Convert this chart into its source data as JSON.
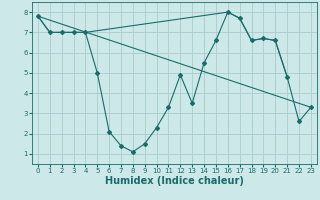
{
  "xlabel": "Humidex (Indice chaleur)",
  "background_color": "#cce8e8",
  "grid_color": "#aacccc",
  "line_color": "#1a6b6b",
  "line1_x": [
    0,
    1,
    2,
    3,
    4,
    5,
    6,
    7,
    8,
    9,
    10,
    11,
    12,
    13,
    14,
    15,
    16,
    17,
    18,
    19,
    20,
    21,
    22,
    23
  ],
  "line1_y": [
    7.8,
    7.0,
    7.0,
    7.0,
    7.0,
    5.0,
    2.1,
    1.4,
    1.1,
    1.5,
    2.3,
    3.3,
    4.9,
    3.5,
    5.5,
    6.6,
    8.0,
    7.7,
    6.6,
    6.7,
    6.6,
    4.8,
    2.6,
    3.3
  ],
  "line2_x": [
    0,
    1,
    2,
    3,
    4,
    16,
    17,
    18,
    19,
    20,
    21
  ],
  "line2_y": [
    7.8,
    7.0,
    7.0,
    7.0,
    7.0,
    8.0,
    7.7,
    6.6,
    6.7,
    6.6,
    4.8
  ],
  "line3_x": [
    0,
    23
  ],
  "line3_y": [
    7.8,
    3.3
  ],
  "xlim": [
    -0.5,
    23.5
  ],
  "ylim": [
    0.5,
    8.5
  ],
  "xticks": [
    0,
    1,
    2,
    3,
    4,
    5,
    6,
    7,
    8,
    9,
    10,
    11,
    12,
    13,
    14,
    15,
    16,
    17,
    18,
    19,
    20,
    21,
    22,
    23
  ],
  "yticks": [
    1,
    2,
    3,
    4,
    5,
    6,
    7,
    8
  ],
  "fontsize_label": 6,
  "fontsize_tick": 5,
  "fontsize_xlabel": 7
}
